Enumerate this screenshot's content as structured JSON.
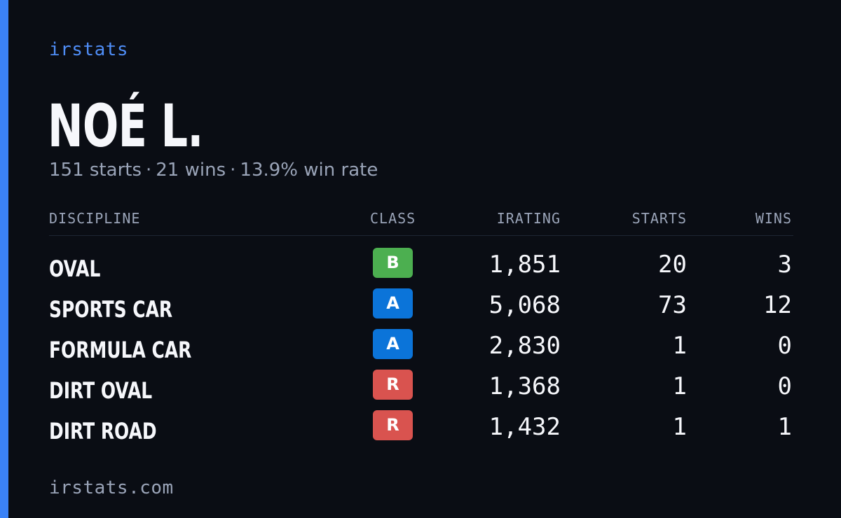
{
  "brand": "irstats",
  "driver": {
    "name": "NOÉ L.",
    "summary": {
      "starts": "151 starts",
      "wins": "21 wins",
      "win_rate": "13.9% win rate",
      "separator": "·"
    }
  },
  "table": {
    "headers": {
      "discipline": "DISCIPLINE",
      "class": "CLASS",
      "irating": "IRATING",
      "starts": "STARTS",
      "wins": "WINS"
    },
    "rows": [
      {
        "discipline": "OVAL",
        "class": "B",
        "irating": "1,851",
        "starts": "20",
        "wins": "3"
      },
      {
        "discipline": "SPORTS CAR",
        "class": "A",
        "irating": "5,068",
        "starts": "73",
        "wins": "12"
      },
      {
        "discipline": "FORMULA CAR",
        "class": "A",
        "irating": "2,830",
        "starts": "1",
        "wins": "0"
      },
      {
        "discipline": "DIRT OVAL",
        "class": "R",
        "irating": "1,368",
        "starts": "1",
        "wins": "0"
      },
      {
        "discipline": "DIRT ROAD",
        "class": "R",
        "irating": "1,432",
        "starts": "1",
        "wins": "1"
      }
    ]
  },
  "footer": "irstats.com",
  "colors": {
    "background": "#0a0d14",
    "accent": "#3b82f6",
    "class_B": "#4caf50",
    "class_A": "#0b74d9",
    "class_R": "#d9534f"
  }
}
